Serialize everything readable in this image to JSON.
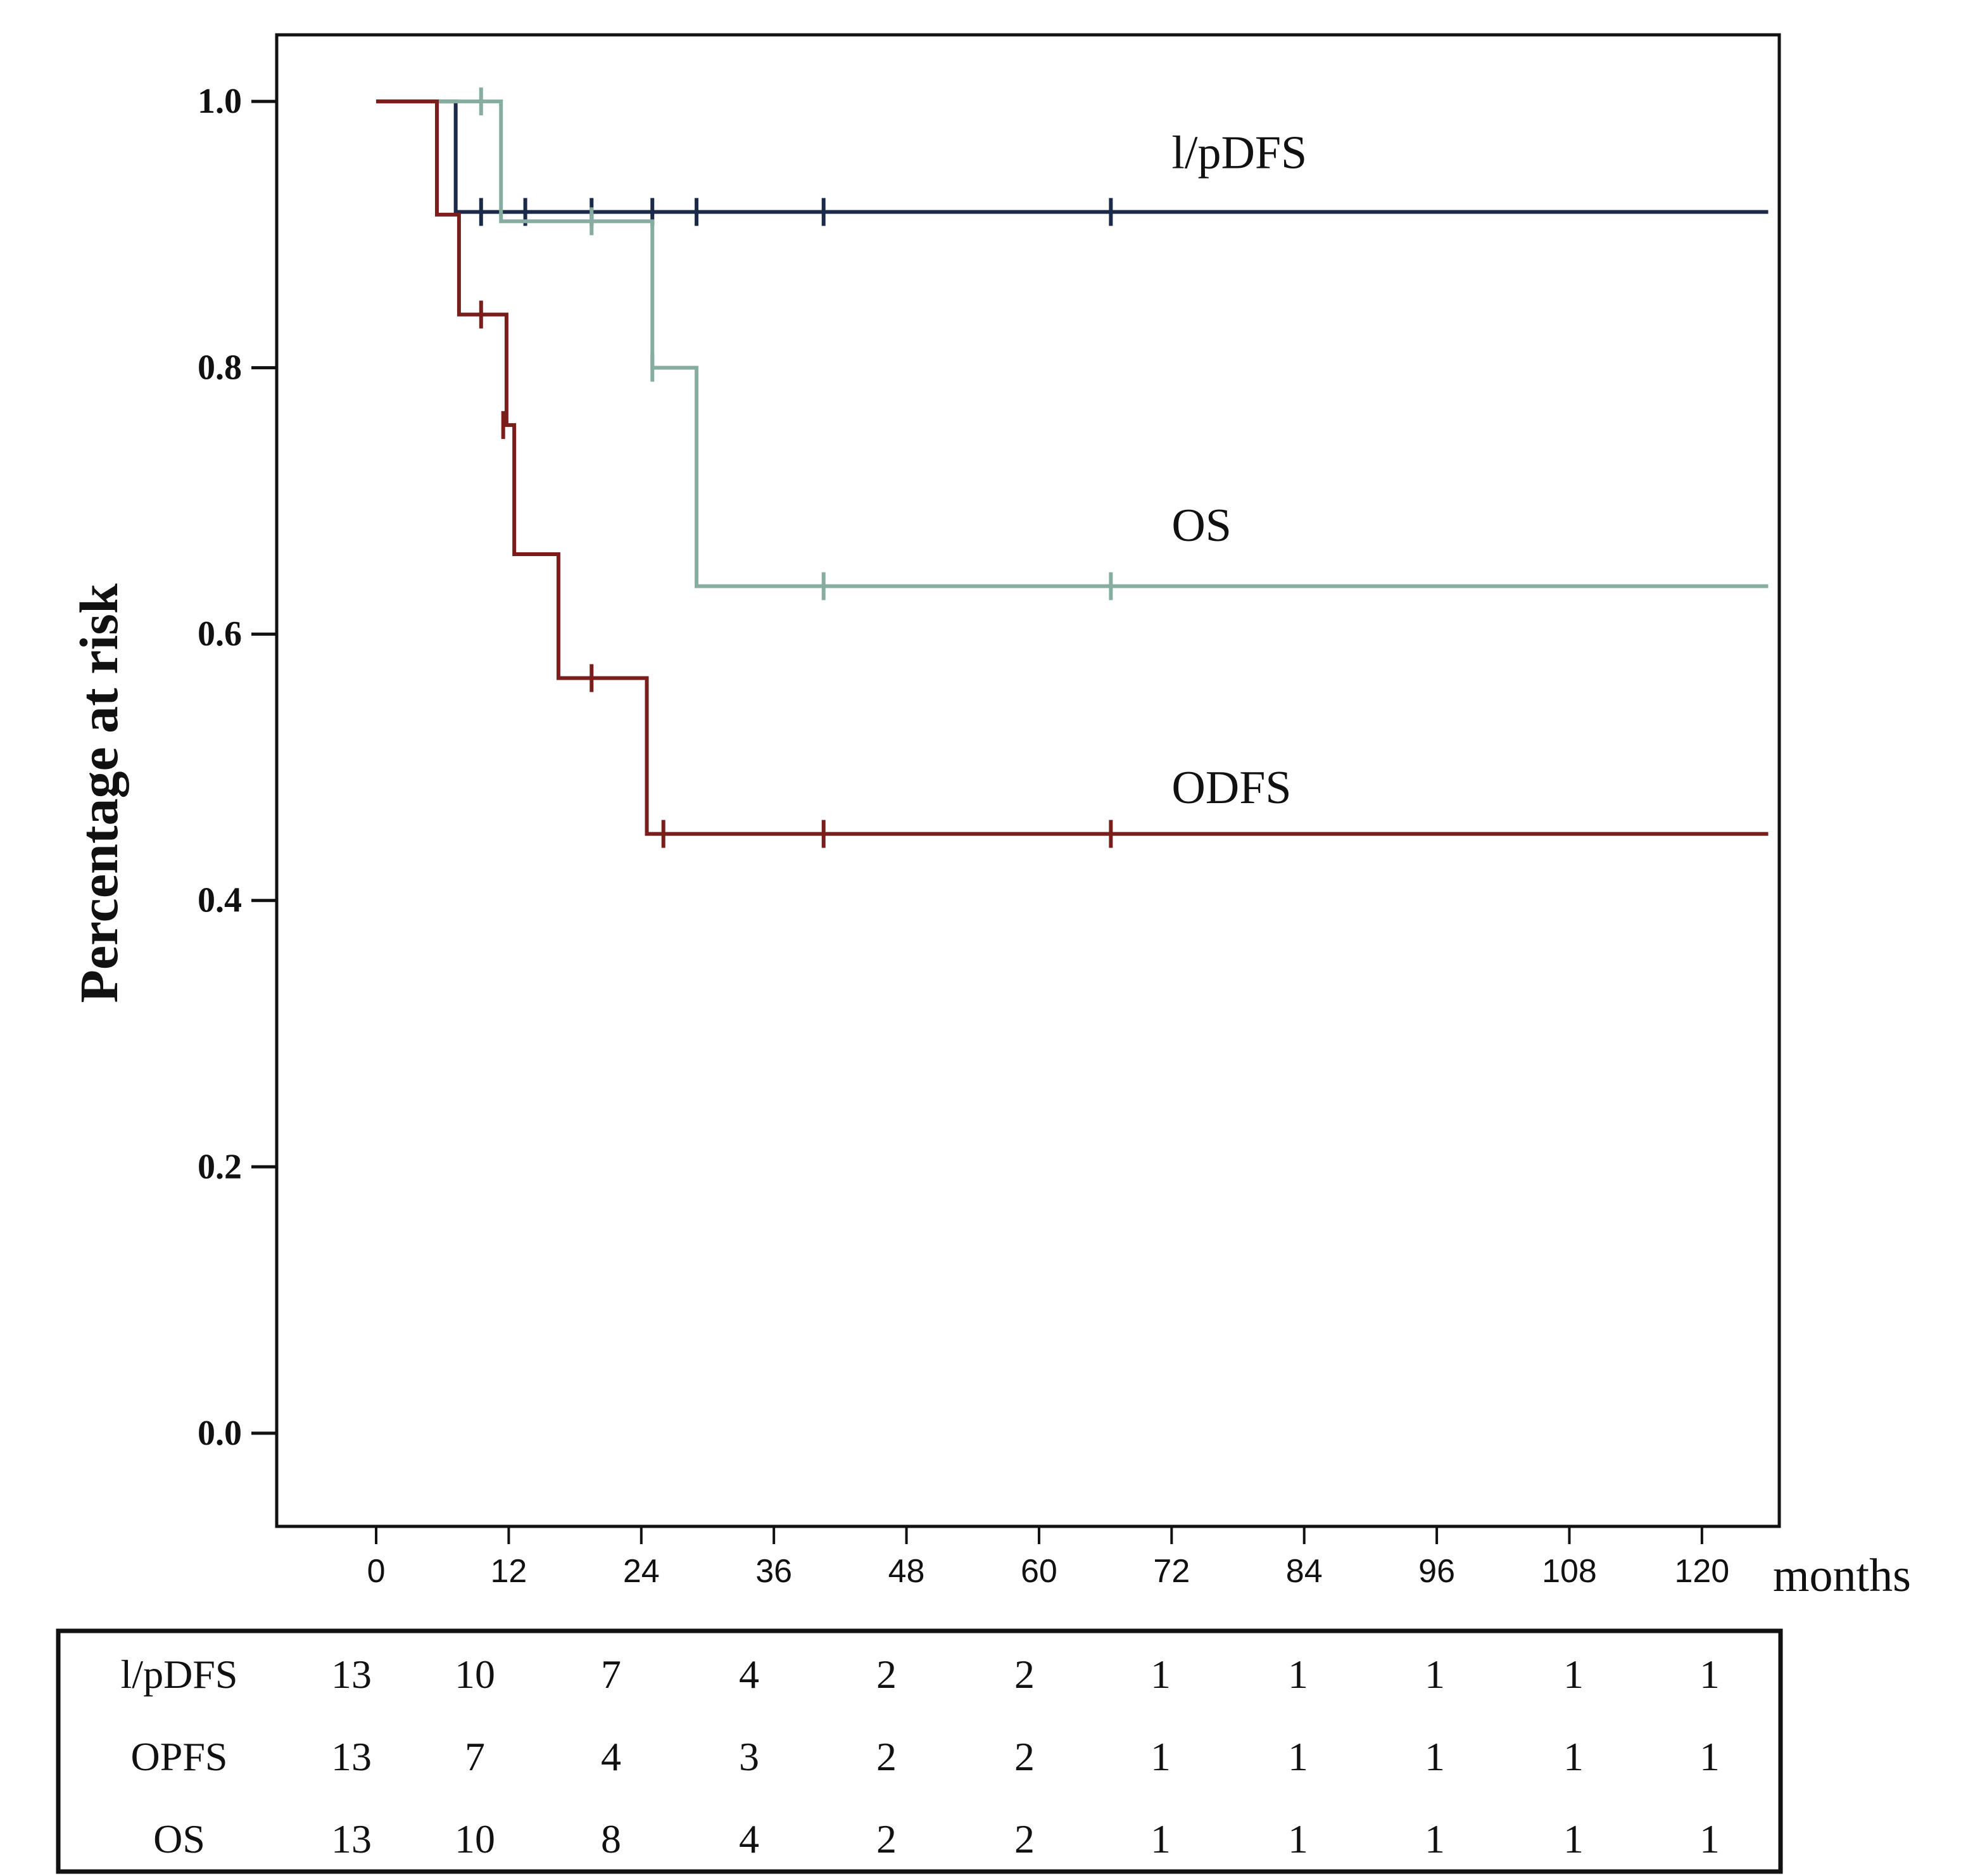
{
  "chart_data": {
    "type": "line",
    "subtype": "kaplan-meier",
    "title": "",
    "xlabel": "months",
    "ylabel": "Percentage at risk",
    "xlim": [
      -9,
      127
    ],
    "ylim": [
      -0.07,
      1.05
    ],
    "xticks": [
      0,
      12,
      24,
      36,
      48,
      60,
      72,
      84,
      96,
      108,
      120
    ],
    "xtick_labels": [
      "0",
      "12",
      "24",
      "36",
      "48",
      "60",
      "72",
      "84",
      "96",
      "108",
      "120"
    ],
    "yticks": [
      0.0,
      0.2,
      0.4,
      0.6,
      0.8,
      1.0
    ],
    "ytick_labels": [
      "0.0",
      "0.2",
      "0.4",
      "0.6",
      "0.8",
      "1.0"
    ],
    "series": [
      {
        "name": "l/pDFS",
        "label": "l/pDFS",
        "color": "#1c2a4a",
        "steps": [
          [
            0,
            1.0
          ],
          [
            7.2,
            0.917
          ],
          [
            126,
            0.917
          ]
        ],
        "censors": [
          [
            9.5,
            0.917
          ],
          [
            13.5,
            0.917
          ],
          [
            19.5,
            0.917
          ],
          [
            25,
            0.917
          ],
          [
            29,
            0.917
          ],
          [
            40.5,
            0.917
          ],
          [
            66.5,
            0.917
          ]
        ],
        "label_at": [
          72,
          0.95
        ]
      },
      {
        "name": "OS",
        "label": "OS",
        "color": "#86ada0",
        "steps": [
          [
            0,
            1.0
          ],
          [
            11.3,
            0.91
          ],
          [
            25,
            0.8
          ],
          [
            29,
            0.636
          ],
          [
            126,
            0.636
          ]
        ],
        "censors": [
          [
            9.5,
            1.0
          ],
          [
            19.5,
            0.91
          ],
          [
            25,
            0.8
          ],
          [
            40.5,
            0.636
          ],
          [
            66.5,
            0.636
          ]
        ],
        "label_at": [
          72,
          0.67
        ]
      },
      {
        "name": "ODFS",
        "label": "ODFS",
        "color": "#7a1e1c",
        "steps": [
          [
            0,
            1.0
          ],
          [
            5.5,
            0.915
          ],
          [
            7.5,
            0.84
          ],
          [
            11.8,
            0.757
          ],
          [
            12.5,
            0.66
          ],
          [
            16.5,
            0.567
          ],
          [
            24.5,
            0.45
          ],
          [
            126,
            0.45
          ]
        ],
        "censors": [
          [
            9.5,
            0.84
          ],
          [
            11.5,
            0.757
          ],
          [
            19.5,
            0.567
          ],
          [
            26,
            0.45
          ],
          [
            40.5,
            0.45
          ],
          [
            66.5,
            0.45
          ]
        ],
        "label_at": [
          72,
          0.473
        ]
      }
    ],
    "risk_table": {
      "rows": [
        {
          "name": "l/pDFS",
          "values": [
            "13",
            "10",
            "7",
            "4",
            "2",
            "2",
            "1",
            "1",
            "1",
            "1",
            "1"
          ]
        },
        {
          "name": "OPFS",
          "values": [
            "13",
            "7",
            "4",
            "3",
            "2",
            "2",
            "1",
            "1",
            "1",
            "1",
            "1"
          ]
        },
        {
          "name": "OS",
          "values": [
            "13",
            "10",
            "8",
            "4",
            "2",
            "2",
            "1",
            "1",
            "1",
            "1",
            "1"
          ]
        }
      ]
    }
  }
}
